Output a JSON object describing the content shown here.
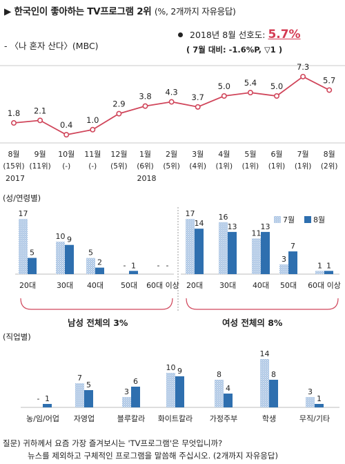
{
  "header": {
    "arrow": "▶",
    "title": "한국인이 좋아하는 TV프로그램 2위",
    "title_unit": "(%, 2개까지 자유응답)",
    "program": "- 〈나 혼자 산다〉(MBC)",
    "pref_label": "2018년 8월 선호도:",
    "pref_value": "5.7%",
    "pref_change": "( 7월 대비: -1.6%P, ▽1 )"
  },
  "colors": {
    "line": "#d0455a",
    "marker": "#ffffff",
    "bar_july": "#a8c3e3",
    "bar_aug": "#2e6faf",
    "pref_value": "#d43a52"
  },
  "section_labels": {
    "gender_age": "(성/연령별)",
    "occupation": "(직업별)"
  },
  "group_labels": {
    "male": "남성 전체의 3%",
    "female": "여성 전체의 8%"
  },
  "question": {
    "line1": "질문) 귀하께서 요즘 가장 즐겨보시는 'TV프로그램'은 무엇입니까?",
    "line2": "뉴스를 제외하고 구체적인 프로그램을 말씀해 주십시오. (2개까지 자유응답)"
  },
  "chart_data": [
    {
      "type": "line",
      "title": "한국인이 좋아하는 TV프로그램 2위",
      "series_name": "나 혼자 산다",
      "months": [
        "8월",
        "9월",
        "10월",
        "11월",
        "12월",
        "1월",
        "2월",
        "3월",
        "4월",
        "5월",
        "6월",
        "7월",
        "8월"
      ],
      "ranks": [
        "(15위)",
        "(11위)",
        "(-)",
        "(-)",
        "(5위)",
        "(6위)",
        "(5위)",
        "(4위)",
        "(1위)",
        "(1위)",
        "(1위)",
        "(1위)",
        "(2위)"
      ],
      "years": [
        {
          "label": "2017",
          "index": 0
        },
        {
          "label": "2018",
          "index": 5
        }
      ],
      "values": [
        1.8,
        2.1,
        0.4,
        1.0,
        2.9,
        3.8,
        4.3,
        3.7,
        5.0,
        5.4,
        5.0,
        7.3,
        5.7
      ],
      "value_labels": [
        "1.8",
        "2.1",
        "0.4",
        "1.0",
        "2.9",
        "3.8",
        "4.3",
        "3.7",
        "5.0",
        "5.4",
        "5.0",
        "7.3",
        "5.7"
      ]
    },
    {
      "type": "bar",
      "title": "성/연령별",
      "groups": [
        {
          "name": "남성",
          "categories": [
            "20대",
            "30대",
            "40대",
            "50대",
            "60대 이상"
          ]
        },
        {
          "name": "여성",
          "categories": [
            "20대",
            "30대",
            "40대",
            "50대",
            "60대 이상"
          ]
        }
      ],
      "series": [
        {
          "name": "7월",
          "values": [
            17,
            10,
            5,
            null,
            null,
            17,
            16,
            11,
            3,
            1
          ],
          "labels": [
            "17",
            "10",
            "5",
            "-",
            "-",
            "17",
            "16",
            "11",
            "3",
            "1"
          ]
        },
        {
          "name": "8월",
          "values": [
            5,
            9,
            2,
            1,
            null,
            14,
            13,
            13,
            7,
            1
          ],
          "labels": [
            "5",
            "9",
            "2",
            "1",
            "-",
            "14",
            "13",
            "13",
            "7",
            "1"
          ]
        }
      ],
      "legend": "top-right"
    },
    {
      "type": "bar",
      "title": "직업별",
      "categories": [
        "농/임/어업",
        "자영업",
        "블루칼라",
        "화이트칼라",
        "가정주부",
        "학생",
        "무직/기타"
      ],
      "series": [
        {
          "name": "7월",
          "values": [
            null,
            7,
            3,
            10,
            8,
            14,
            3
          ],
          "labels": [
            "-",
            "7",
            "3",
            "10",
            "8",
            "14",
            "3"
          ]
        },
        {
          "name": "8월",
          "values": [
            1,
            5,
            6,
            9,
            4,
            8,
            1
          ],
          "labels": [
            "1",
            "5",
            "6",
            "9",
            "4",
            "8",
            "1"
          ]
        }
      ]
    }
  ]
}
